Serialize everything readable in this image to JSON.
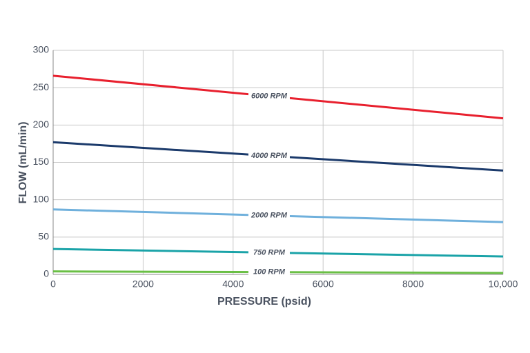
{
  "chart_data": {
    "type": "line",
    "x_label": "PRESSURE (psid)",
    "y_label": "FLOW (mL/min)",
    "x": [
      0,
      10000
    ],
    "series": [
      {
        "name": "6000 RPM",
        "color": "#e8202e",
        "values": [
          266,
          209
        ]
      },
      {
        "name": "4000 RPM",
        "color": "#1b3a6b",
        "values": [
          177,
          139
        ]
      },
      {
        "name": "2000 RPM",
        "color": "#6fb0dc",
        "values": [
          87,
          70
        ]
      },
      {
        "name": "750 RPM",
        "color": "#1aa3a8",
        "values": [
          34,
          24
        ]
      },
      {
        "name": "100 RPM",
        "color": "#6abf45",
        "values": [
          4,
          2
        ]
      }
    ],
    "xlim": [
      0,
      10000
    ],
    "ylim": [
      0,
      300
    ],
    "xticks": [
      0,
      2000,
      4000,
      6000,
      8000,
      {
        "value": 10000,
        "label": "10,000"
      }
    ],
    "yticks": [
      0,
      50,
      100,
      150,
      200,
      250,
      300
    ],
    "grid": true
  }
}
